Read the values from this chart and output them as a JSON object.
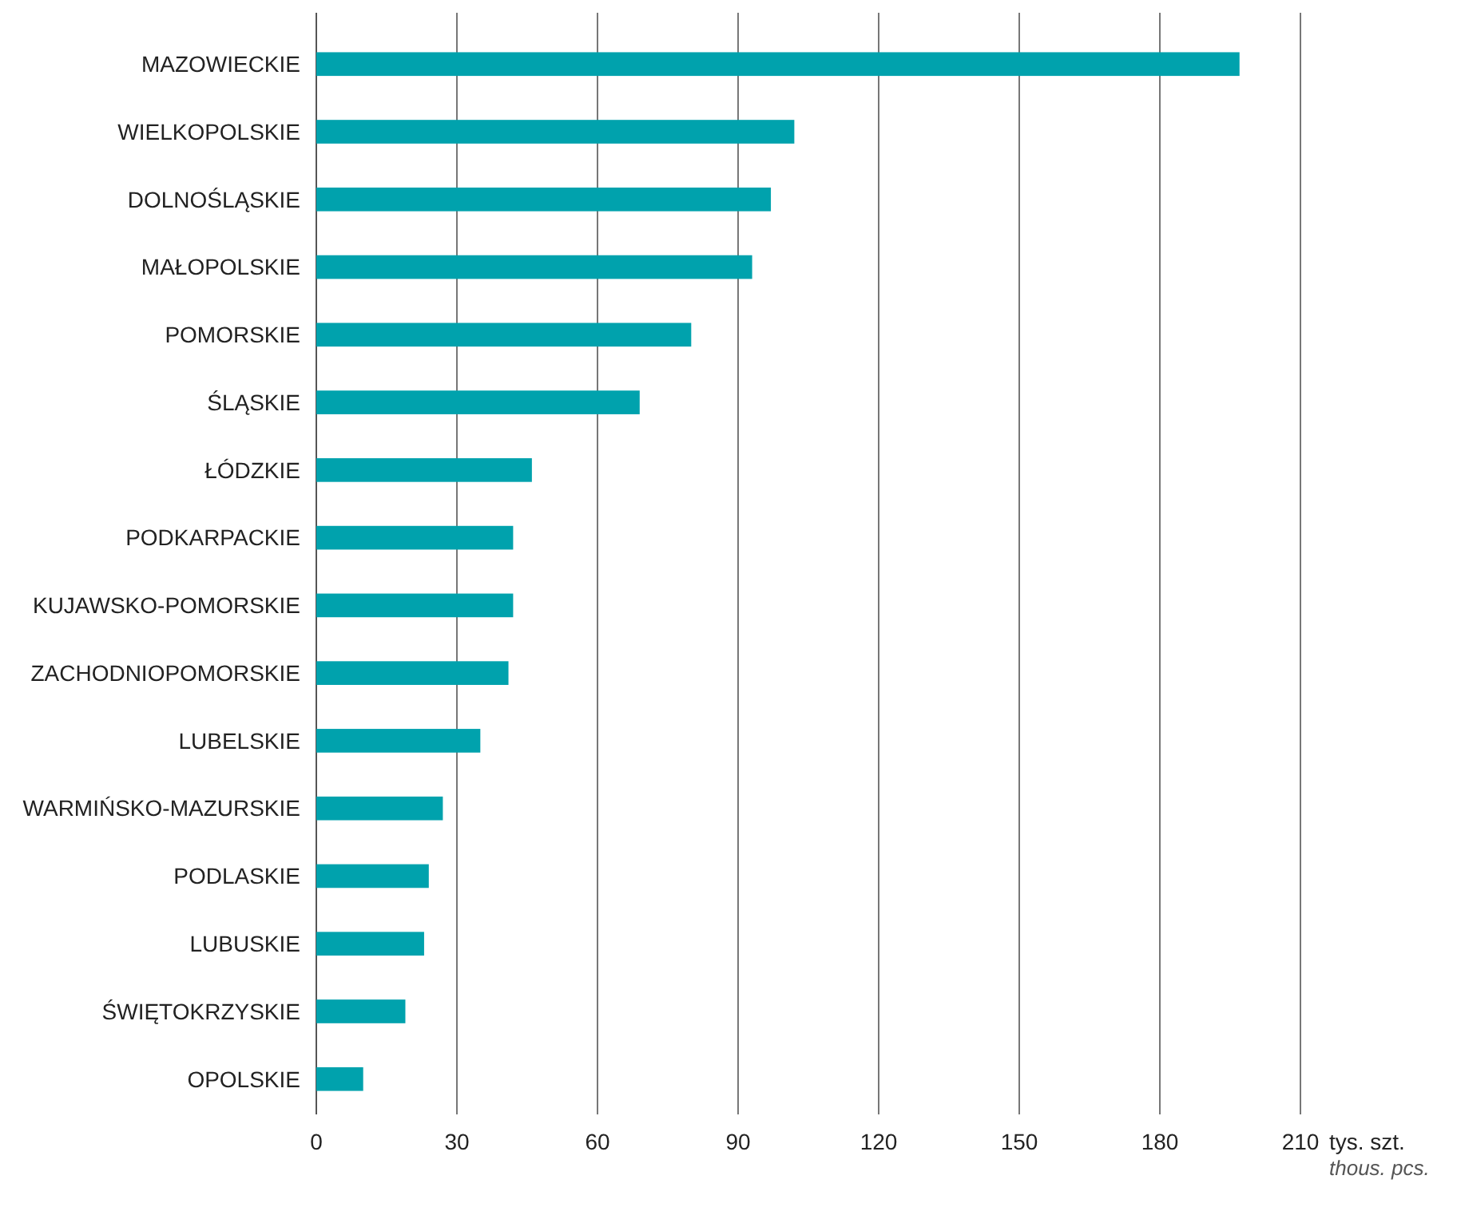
{
  "chart_data": {
    "type": "bar",
    "orientation": "horizontal",
    "categories": [
      "MAZOWIECKIE",
      "WIELKOPOLSKIE",
      "DOLNOŚLĄSKIE",
      "MAŁOPOLSKIE",
      "POMORSKIE",
      "ŚLĄSKIE",
      "ŁÓDZKIE",
      "PODKARPACKIE",
      "KUJAWSKO-POMORSKIE",
      "ZACHODNIOPOMORSKIE",
      "LUBELSKIE",
      "WARMIŃSKO-MAZURSKIE",
      "PODLASKIE",
      "LUBUSKIE",
      "ŚWIĘTOKRZYSKIE",
      "OPOLSKIE"
    ],
    "values": [
      197,
      102,
      97,
      93,
      80,
      69,
      46,
      42,
      42,
      41,
      35,
      27,
      24,
      23,
      19,
      10
    ],
    "color": "#00a2ad",
    "xlim": [
      0,
      210
    ],
    "xticks": [
      0,
      30,
      60,
      90,
      120,
      150,
      180,
      210
    ],
    "xlabel": "tys. szt.",
    "annotations": [
      "thous. pcs."
    ],
    "grid": "x"
  }
}
